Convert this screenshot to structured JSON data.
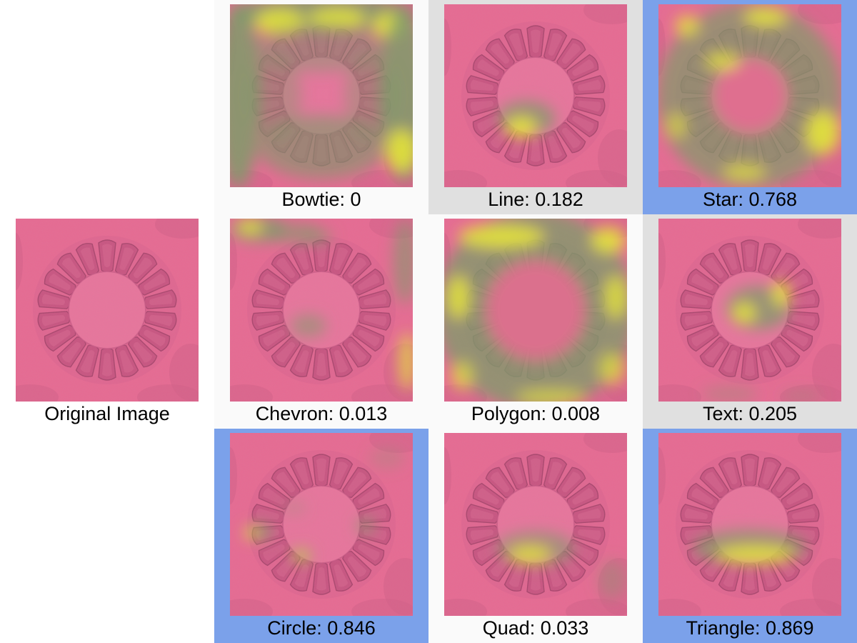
{
  "colors": {
    "highlight_selected": "#7ba1ea",
    "highlight_partial": "#e0e0e0",
    "highlight_none": "#fafafa",
    "tissue_pink": "#e76a92",
    "heat_green": "#7f9b6a",
    "heat_yellow": "#e4e33b"
  },
  "cells": [
    {
      "id": "bowtie",
      "label": "Bowtie: 0",
      "score": 0,
      "highlight": "none",
      "heat": "frame"
    },
    {
      "id": "line",
      "label": "Line: 0.182",
      "score": 0.182,
      "highlight": "partial",
      "heat": "bottom-small"
    },
    {
      "id": "star",
      "label": "Star: 0.768",
      "score": 0.768,
      "highlight": "selected",
      "heat": "ring"
    },
    {
      "id": "original",
      "label": "Original Image",
      "score": null,
      "highlight": "none",
      "heat": "none"
    },
    {
      "id": "chevron",
      "label": "Chevron: 0.013",
      "score": 0.013,
      "highlight": "none",
      "heat": "corner"
    },
    {
      "id": "polygon",
      "label": "Polygon: 0.008",
      "score": 0.008,
      "highlight": "none",
      "heat": "frame-strong"
    },
    {
      "id": "text",
      "label": "Text: 0.205",
      "score": 0.205,
      "highlight": "partial",
      "heat": "center"
    },
    {
      "id": "circle",
      "label": "Circle: 0.846",
      "score": 0.846,
      "highlight": "selected",
      "heat": "left-spots"
    },
    {
      "id": "quad",
      "label": "Quad: 0.033",
      "score": 0.033,
      "highlight": "none",
      "heat": "bottom-mid"
    },
    {
      "id": "triangle",
      "label": "Triangle: 0.869",
      "score": 0.869,
      "highlight": "selected",
      "heat": "bottom-band"
    }
  ]
}
